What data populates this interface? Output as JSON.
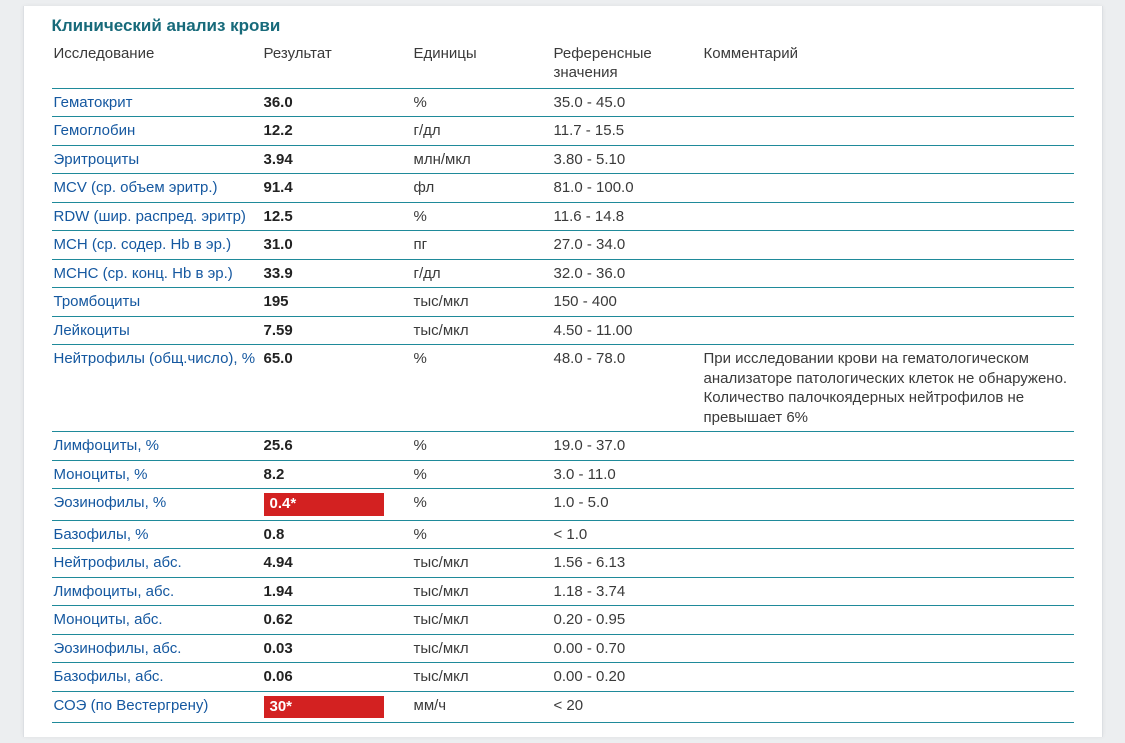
{
  "section_title": "Клинический анализ крови",
  "columns": {
    "name": "Исследование",
    "result": "Результат",
    "unit": "Единицы",
    "ref": "Референсные значения",
    "comment": "Комментарий"
  },
  "colors": {
    "heading": "#176a7a",
    "rule": "#1f8a9a",
    "link_name": "#1558a0",
    "flag_bg": "#d32121",
    "flag_fg": "#ffffff",
    "text": "#3a3a3a",
    "page_bg": "#ffffff",
    "outer_bg": "#eceef0"
  },
  "rows": [
    {
      "name": "Гематокрит",
      "result": "36.0",
      "unit": "%",
      "ref": "35.0 - 45.0",
      "comment": "",
      "flag": false
    },
    {
      "name": "Гемоглобин",
      "result": "12.2",
      "unit": "г/дл",
      "ref": "11.7 - 15.5",
      "comment": "",
      "flag": false
    },
    {
      "name": "Эритроциты",
      "result": "3.94",
      "unit": "млн/мкл",
      "ref": "3.80 - 5.10",
      "comment": "",
      "flag": false
    },
    {
      "name": "MCV (ср. объем эритр.)",
      "result": "91.4",
      "unit": "фл",
      "ref": "81.0 - 100.0",
      "comment": "",
      "flag": false
    },
    {
      "name": "RDW (шир. распред. эритр)",
      "result": "12.5",
      "unit": "%",
      "ref": "11.6 - 14.8",
      "comment": "",
      "flag": false
    },
    {
      "name": "MCH (ср. содер. Hb в эр.)",
      "result": "31.0",
      "unit": "пг",
      "ref": "27.0 - 34.0",
      "comment": "",
      "flag": false
    },
    {
      "name": "MCHC (ср. конц. Hb в эр.)",
      "result": "33.9",
      "unit": "г/дл",
      "ref": "32.0 - 36.0",
      "comment": "",
      "flag": false
    },
    {
      "name": "Тромбоциты",
      "result": "195",
      "unit": "тыс/мкл",
      "ref": "150 - 400",
      "comment": "",
      "flag": false
    },
    {
      "name": "Лейкоциты",
      "result": "7.59",
      "unit": "тыс/мкл",
      "ref": "4.50 - 11.00",
      "comment": "",
      "flag": false
    },
    {
      "name": "Нейтрофилы (общ.число), %",
      "result": "65.0",
      "unit": "%",
      "ref": "48.0 - 78.0",
      "comment": "При исследовании крови на гематологическом анализаторе патологических клеток не обнаружено. Количество палочкоядерных нейтрофилов не превышает 6%",
      "flag": false
    },
    {
      "name": "Лимфоциты, %",
      "result": "25.6",
      "unit": "%",
      "ref": "19.0 - 37.0",
      "comment": "",
      "flag": false
    },
    {
      "name": "Моноциты, %",
      "result": "8.2",
      "unit": "%",
      "ref": "3.0 - 11.0",
      "comment": "",
      "flag": false
    },
    {
      "name": "Эозинофилы, %",
      "result": "0.4*",
      "unit": "%",
      "ref": "1.0 - 5.0",
      "comment": "",
      "flag": true
    },
    {
      "name": "Базофилы, %",
      "result": "0.8",
      "unit": "%",
      "ref": "< 1.0",
      "comment": "",
      "flag": false
    },
    {
      "name": "Нейтрофилы, абс.",
      "result": "4.94",
      "unit": "тыс/мкл",
      "ref": "1.56 - 6.13",
      "comment": "",
      "flag": false
    },
    {
      "name": "Лимфоциты, абс.",
      "result": "1.94",
      "unit": "тыс/мкл",
      "ref": "1.18 - 3.74",
      "comment": "",
      "flag": false
    },
    {
      "name": "Моноциты, абс.",
      "result": "0.62",
      "unit": "тыс/мкл",
      "ref": "0.20 - 0.95",
      "comment": "",
      "flag": false
    },
    {
      "name": "Эозинофилы, абс.",
      "result": "0.03",
      "unit": "тыс/мкл",
      "ref": "0.00 - 0.70",
      "comment": "",
      "flag": false
    },
    {
      "name": "Базофилы, абс.",
      "result": "0.06",
      "unit": "тыс/мкл",
      "ref": "0.00 - 0.20",
      "comment": "",
      "flag": false
    },
    {
      "name": "СОЭ (по Вестергрену)",
      "result": "30*",
      "unit": "мм/ч",
      "ref": "< 20",
      "comment": "",
      "flag": true
    }
  ]
}
